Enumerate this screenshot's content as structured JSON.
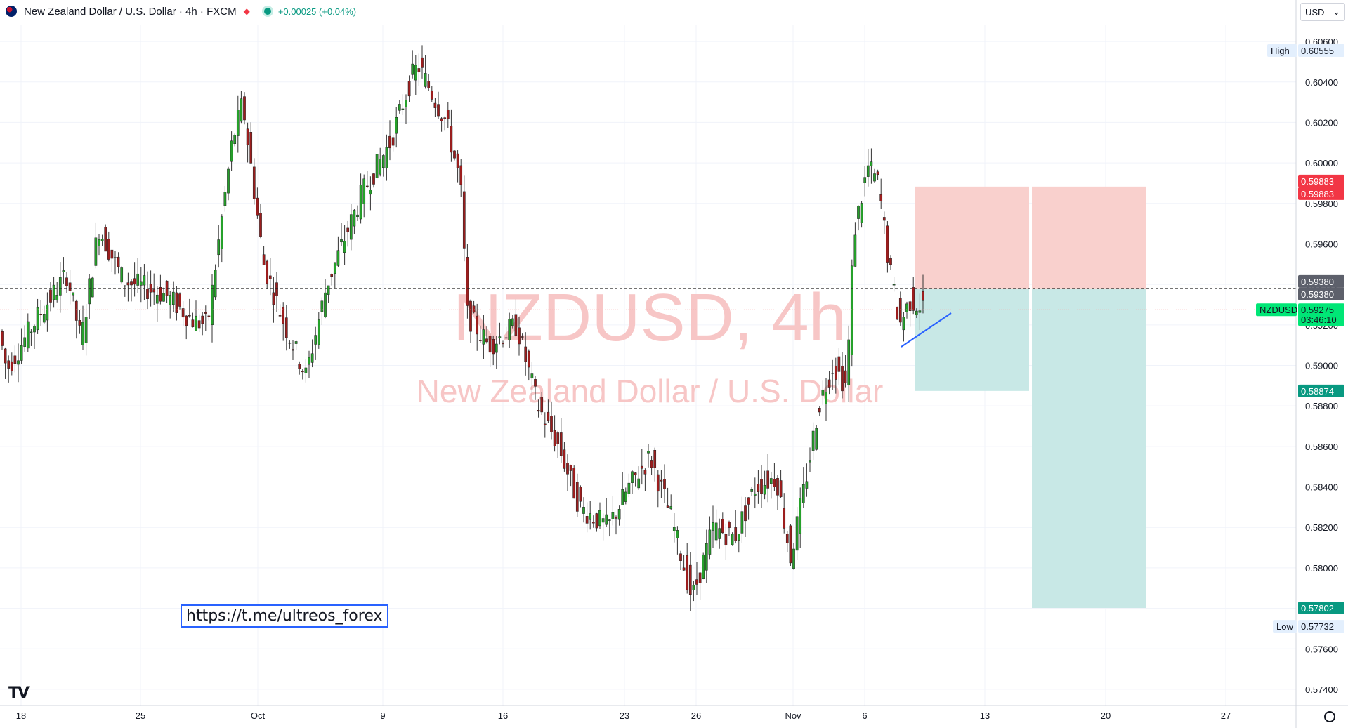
{
  "header": {
    "title": "New Zealand Dollar / U.S. Dollar · 4h · FXCM",
    "change": "+0.00025 (+0.04%)"
  },
  "currency_selector": {
    "value": "USD"
  },
  "watermark": {
    "symbol": "NZDUSD, 4h",
    "name": "New Zealand Dollar / U.S. Dollar"
  },
  "link_text": "https://t.me/ultreos_forex",
  "chart_data": {
    "type": "candlestick",
    "symbol": "NZDUSD",
    "timeframe": "4h",
    "ylim": [
      0.5732,
      0.6068
    ],
    "y_ticks": [
      "0.60600",
      "0.60400",
      "0.60200",
      "0.60000",
      "0.59800",
      "0.59600",
      "0.59400",
      "0.59200",
      "0.59000",
      "0.58800",
      "0.58600",
      "0.58400",
      "0.58200",
      "0.58000",
      "0.57800",
      "0.57600",
      "0.57400"
    ],
    "x_ticks": [
      "18",
      "25",
      "Oct",
      "9",
      "16",
      "23",
      "26",
      "Nov",
      "6",
      "13",
      "20",
      "27"
    ],
    "price_markers": [
      {
        "label": "High",
        "value": "0.60555",
        "style": "badge"
      },
      {
        "label": "",
        "value": "0.59883",
        "style": "stop"
      },
      {
        "label": "",
        "value": "0.59883",
        "style": "stop"
      },
      {
        "label": "",
        "value": "0.59380",
        "style": "entry"
      },
      {
        "label": "",
        "value": "0.59380",
        "style": "entry"
      },
      {
        "label": "NZDUSD",
        "value": "0.59275",
        "sub": "03:46:10",
        "style": "current"
      },
      {
        "label": "",
        "value": "0.58874",
        "style": "target"
      },
      {
        "label": "",
        "value": "0.57802",
        "style": "target"
      },
      {
        "label": "Low",
        "value": "0.57732",
        "style": "badge"
      }
    ],
    "positions": [
      {
        "type": "short",
        "entry": 0.5938,
        "stop": 0.59883,
        "target": 0.58874
      },
      {
        "type": "short",
        "entry": 0.5938,
        "stop": 0.59883,
        "target": 0.57802
      }
    ],
    "colors": {
      "up": "#26a12b",
      "down": "#9c1e1e",
      "stop_zone": "#f9d0cd",
      "target_zone": "#c8e8e6",
      "current": "#00e676"
    }
  }
}
